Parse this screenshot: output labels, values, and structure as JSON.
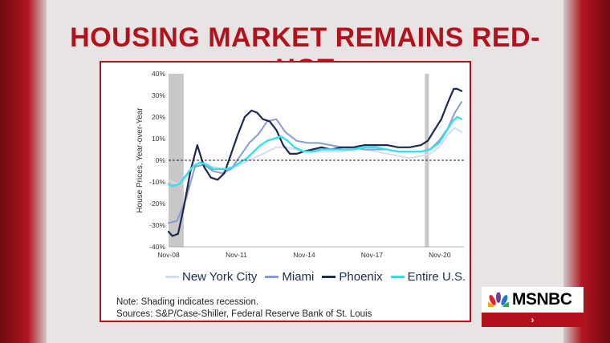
{
  "headline": "HOUSING MARKET REMAINS RED-HOT",
  "note": "Note: Shading indicates recession.",
  "sources": "Sources: S&P/Case-Shiller, Federal Reserve Bank of St. Louis",
  "logo_text": "MSNBC",
  "logo_chevron": "›",
  "colors": {
    "headline": "#b3121d",
    "new_york_city": "#d6dbef",
    "miami": "#8a9bd1",
    "phoenix": "#1c2a4f",
    "entire_us": "#34e0ee",
    "recession": "#c8c8c8"
  },
  "chart_data": {
    "type": "line",
    "ylabel": "House Prices, Year-over-Year",
    "xlabel": "",
    "ylim": [
      -40,
      40
    ],
    "yticks": [
      "40%",
      "30%",
      "20%",
      "10%",
      "0%",
      "-10%",
      "-20%",
      "-30%",
      "-40%"
    ],
    "xticks": [
      "Nov-08",
      "Nov-11",
      "Nov-14",
      "Nov-17",
      "Nov-20"
    ],
    "xlim": [
      2008.83,
      2021.9
    ],
    "recession_shading": [
      [
        2008.83,
        2009.5
      ],
      [
        2020.17,
        2020.33
      ]
    ],
    "zero_line": "dashed",
    "series": [
      {
        "name": "New York City",
        "color": "#d6dbef",
        "x": [
          2008.83,
          2009.2,
          2009.6,
          2010.0,
          2010.4,
          2010.8,
          2011.2,
          2011.6,
          2012.0,
          2012.4,
          2012.8,
          2013.2,
          2013.6,
          2014.0,
          2014.5,
          2015.0,
          2015.5,
          2016.0,
          2016.5,
          2017.0,
          2017.5,
          2018.0,
          2018.5,
          2019.0,
          2019.5,
          2020.0,
          2020.4,
          2020.8,
          2021.2,
          2021.5,
          2021.8
        ],
        "y": [
          -9,
          -11,
          -8,
          -2,
          -1,
          -3,
          -4,
          -4,
          -2,
          0,
          2,
          4,
          6,
          6,
          5,
          4,
          4,
          4,
          4,
          5,
          5,
          4,
          3,
          2,
          1,
          2,
          3,
          6,
          12,
          15,
          13
        ]
      },
      {
        "name": "Miami",
        "color": "#8a9bd1",
        "x": [
          2008.83,
          2009.2,
          2009.6,
          2010.0,
          2010.4,
          2010.8,
          2011.2,
          2011.6,
          2012.0,
          2012.4,
          2012.8,
          2013.2,
          2013.6,
          2014.0,
          2014.5,
          2015.0,
          2015.5,
          2016.0,
          2016.5,
          2017.0,
          2017.5,
          2018.0,
          2018.5,
          2019.0,
          2019.5,
          2020.0,
          2020.4,
          2020.8,
          2021.2,
          2021.5,
          2021.8
        ],
        "y": [
          -29,
          -28,
          -18,
          -3,
          -2,
          -5,
          -6,
          -4,
          2,
          8,
          12,
          18,
          19,
          13,
          9,
          8,
          8,
          7,
          6,
          6,
          5,
          5,
          5,
          4,
          4,
          4,
          5,
          9,
          15,
          22,
          27
        ]
      },
      {
        "name": "Phoenix",
        "color": "#1c2a4f",
        "x": [
          2008.83,
          2009.0,
          2009.25,
          2009.5,
          2009.8,
          2010.1,
          2010.4,
          2010.7,
          2011.0,
          2011.3,
          2011.6,
          2011.9,
          2012.2,
          2012.5,
          2012.75,
          2013.0,
          2013.3,
          2013.6,
          2013.9,
          2014.2,
          2014.5,
          2014.8,
          2015.2,
          2015.6,
          2016.0,
          2016.5,
          2017.0,
          2017.5,
          2018.0,
          2018.5,
          2019.0,
          2019.5,
          2020.0,
          2020.3,
          2020.6,
          2020.9,
          2021.2,
          2021.45,
          2021.6,
          2021.8
        ],
        "y": [
          -33,
          -35,
          -34,
          -22,
          -5,
          7,
          -3,
          -8,
          -9,
          -6,
          3,
          12,
          20,
          23,
          22,
          19,
          18,
          14,
          7,
          3,
          3,
          4,
          5,
          6,
          5,
          6,
          6,
          7,
          7,
          7,
          6,
          6,
          7,
          9,
          14,
          19,
          27,
          33,
          33,
          32
        ]
      },
      {
        "name": "Entire U.S.",
        "color": "#34e0ee",
        "x": [
          2008.83,
          2009.0,
          2009.3,
          2009.6,
          2009.9,
          2010.2,
          2010.5,
          2010.8,
          2011.1,
          2011.4,
          2011.7,
          2012.0,
          2012.3,
          2012.6,
          2012.9,
          2013.2,
          2013.5,
          2013.8,
          2014.1,
          2014.4,
          2014.8,
          2015.2,
          2015.6,
          2016.0,
          2016.5,
          2017.0,
          2017.5,
          2018.0,
          2018.5,
          2019.0,
          2019.5,
          2020.0,
          2020.4,
          2020.8,
          2021.1,
          2021.4,
          2021.6,
          2021.8
        ],
        "y": [
          -11,
          -12,
          -11,
          -7,
          -3,
          -1,
          -2,
          -4,
          -4,
          -4,
          -3,
          -1,
          1,
          4,
          7,
          9,
          10,
          11,
          9,
          6,
          4,
          4,
          5,
          5,
          5,
          5,
          6,
          6,
          5,
          4,
          4,
          4,
          5,
          8,
          13,
          18,
          20,
          19
        ]
      }
    ]
  }
}
